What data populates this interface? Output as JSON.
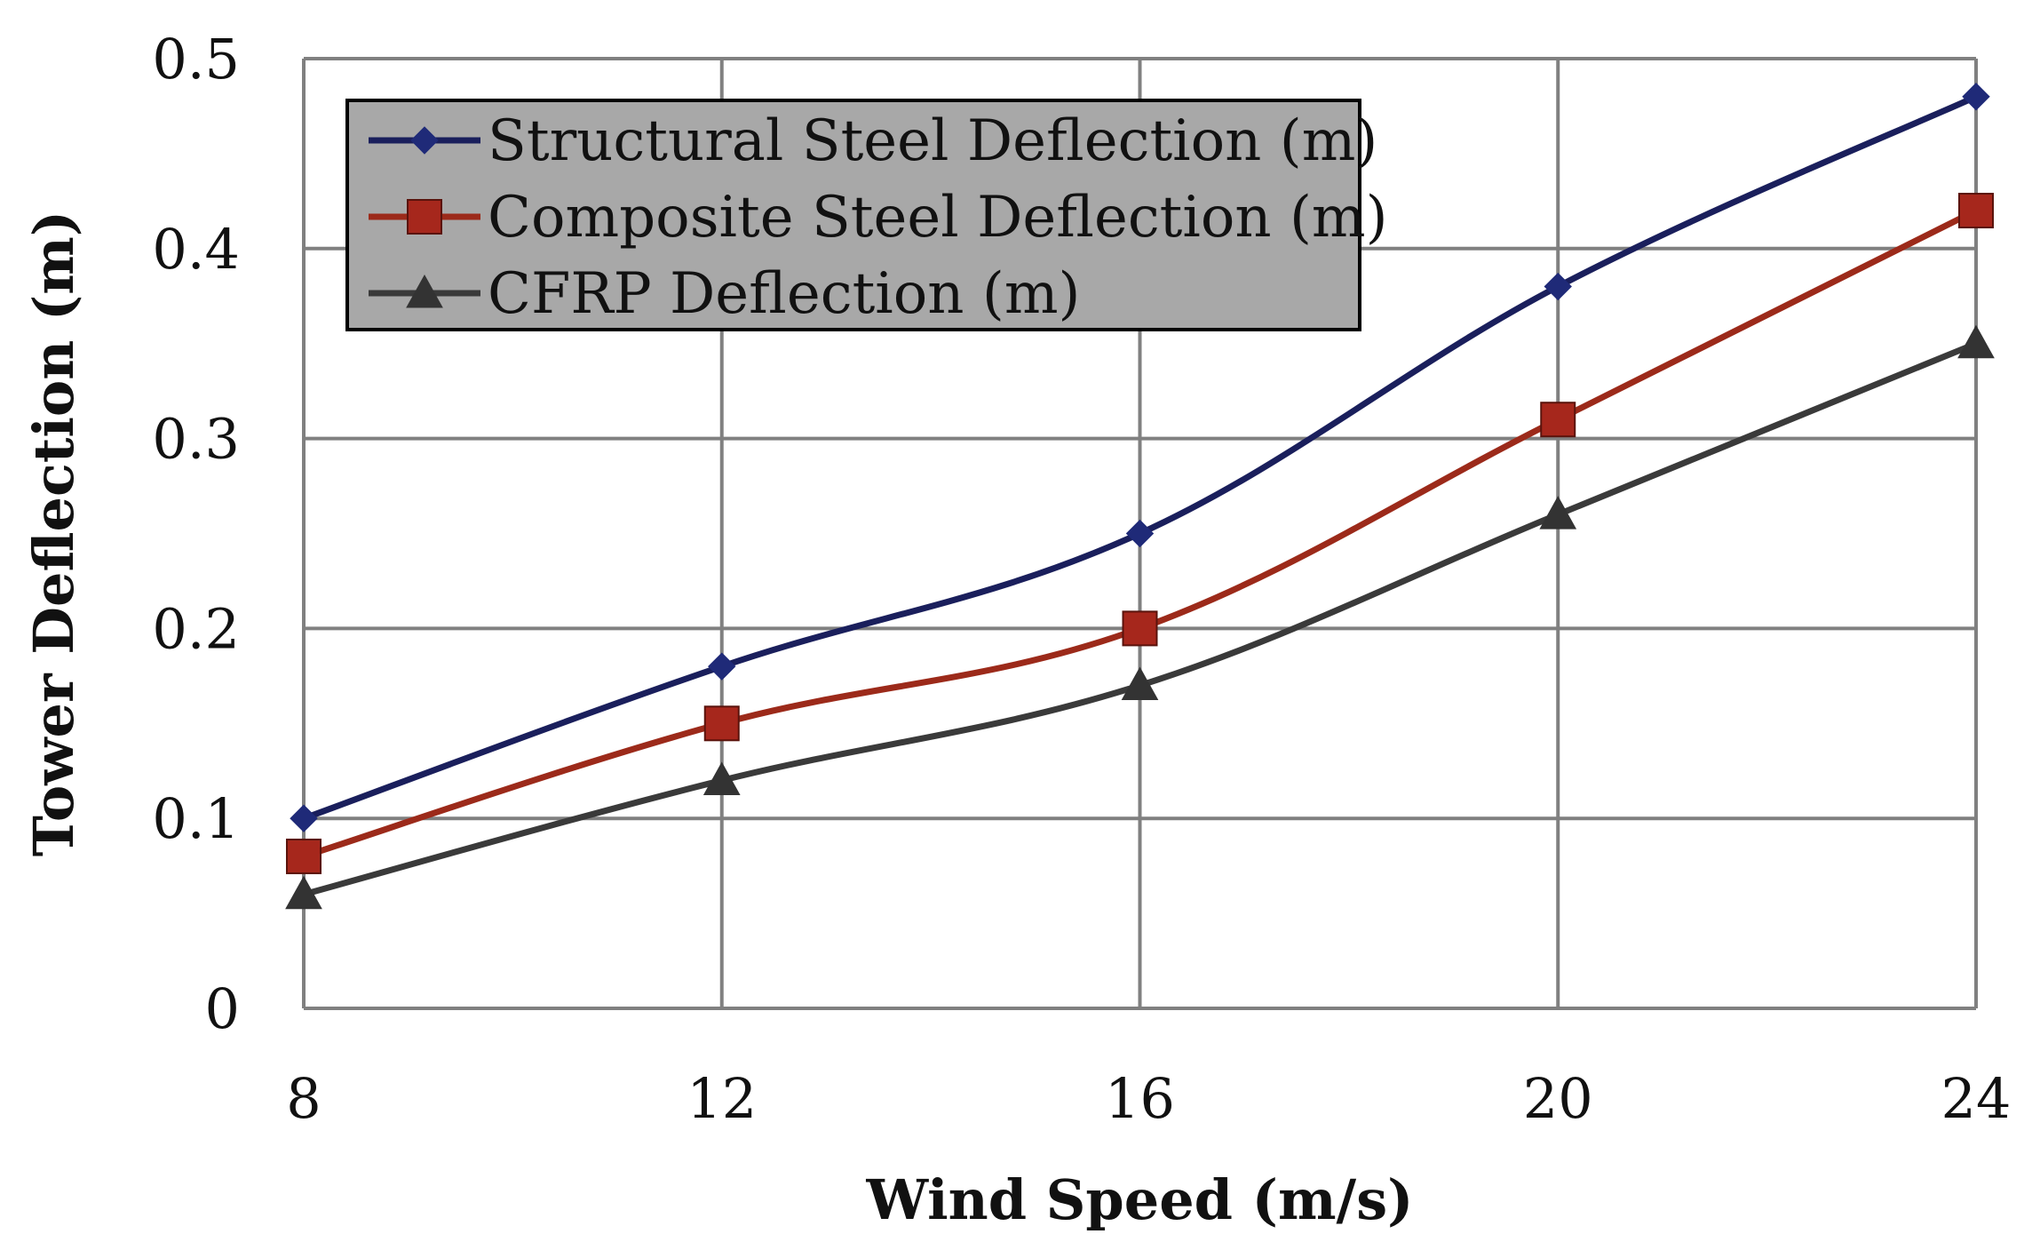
{
  "chart_data": {
    "type": "line",
    "title": "",
    "xlabel": "Wind Speed (m/s)",
    "ylabel": "Tower Deflection (m)",
    "x": [
      8,
      12,
      16,
      20,
      24
    ],
    "x_tick_labels": [
      "8",
      "12",
      "16",
      "20",
      "24"
    ],
    "y_tick_labels": [
      "0",
      "0.1",
      "0.2",
      "0.3",
      "0.4",
      "0.5"
    ],
    "y_ticks": [
      0,
      0.1,
      0.2,
      0.3,
      0.4,
      0.5
    ],
    "ylim": [
      0,
      0.5
    ],
    "grid": true,
    "legend_position": "top-left",
    "smooth": true,
    "series": [
      {
        "name": "Structural Steel Deflection (m)",
        "values": [
          0.1,
          0.18,
          0.25,
          0.38,
          0.48
        ],
        "color": "#1a1f5c",
        "marker": "diamond",
        "marker_color": "#1f2a78"
      },
      {
        "name": "Composite Steel Deflection (m)",
        "values": [
          0.08,
          0.15,
          0.2,
          0.31,
          0.42
        ],
        "color": "#9c2a1a",
        "marker": "square",
        "marker_color": "#a6271c"
      },
      {
        "name": "CFRP Deflection (m)",
        "values": [
          0.06,
          0.12,
          0.17,
          0.26,
          0.35
        ],
        "color": "#3a3a3a",
        "marker": "triangle",
        "marker_color": "#333333"
      }
    ],
    "colors": {
      "grid": "#808080",
      "legend_background": "#a8a8a8",
      "legend_border": "#000000"
    }
  }
}
